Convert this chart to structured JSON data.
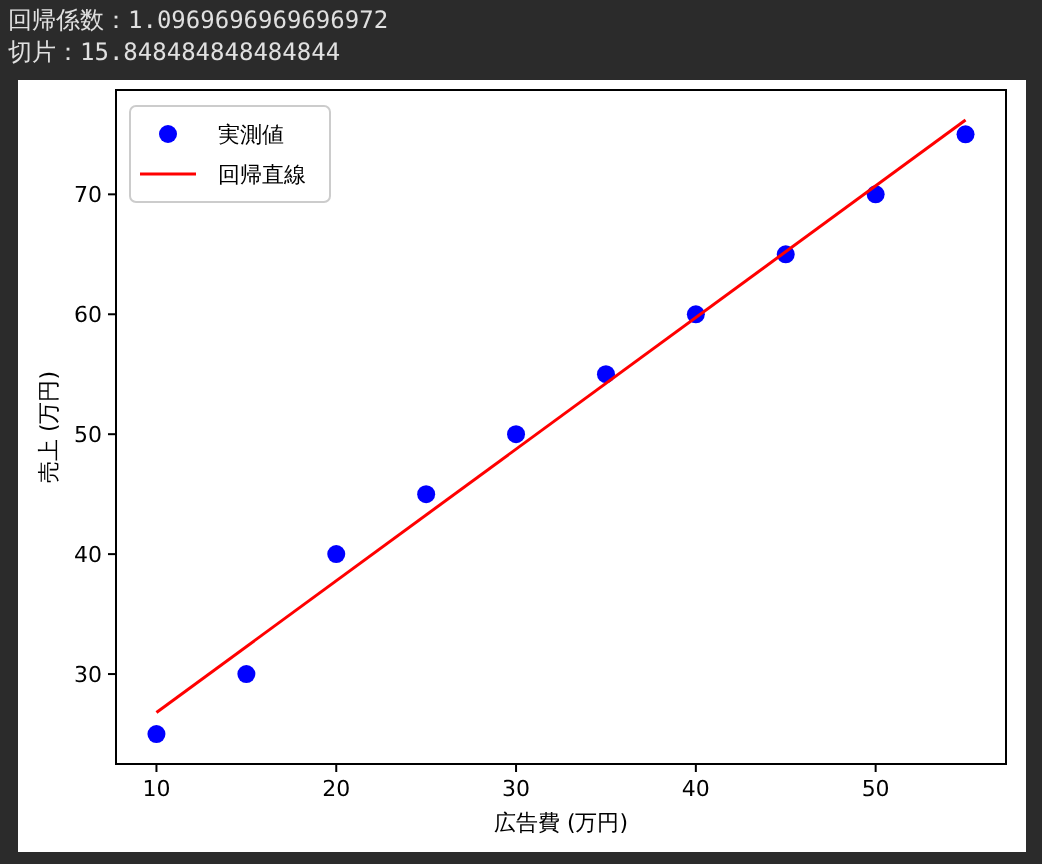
{
  "chart_data": {
    "type": "scatter",
    "xlabel": "広告費 (万円)",
    "ylabel": "売上 (万円)",
    "annotations": [
      "回帰係数：1.0969696969696972",
      "切片：15.848484848484844"
    ],
    "x": [
      10,
      15,
      20,
      25,
      30,
      35,
      40,
      45,
      50,
      55
    ],
    "series": [
      {
        "name": "実測値",
        "color": "#0000ff",
        "marker": "circle",
        "values": [
          25,
          30,
          40,
          45,
          50,
          55,
          60,
          65,
          70,
          75
        ]
      },
      {
        "name": "回帰直線",
        "type": "line",
        "color": "#ff0000",
        "marker": "none",
        "x": [
          10,
          55
        ],
        "values": [
          26.8,
          76.2
        ]
      }
    ],
    "xlim": [
      7.75,
      57.25
    ],
    "ylim": [
      22.5,
      78.7
    ],
    "xticks": [
      10,
      20,
      30,
      40,
      50
    ],
    "yticks": [
      30,
      40,
      50,
      60,
      70
    ],
    "legend": "top left",
    "grid": false
  }
}
